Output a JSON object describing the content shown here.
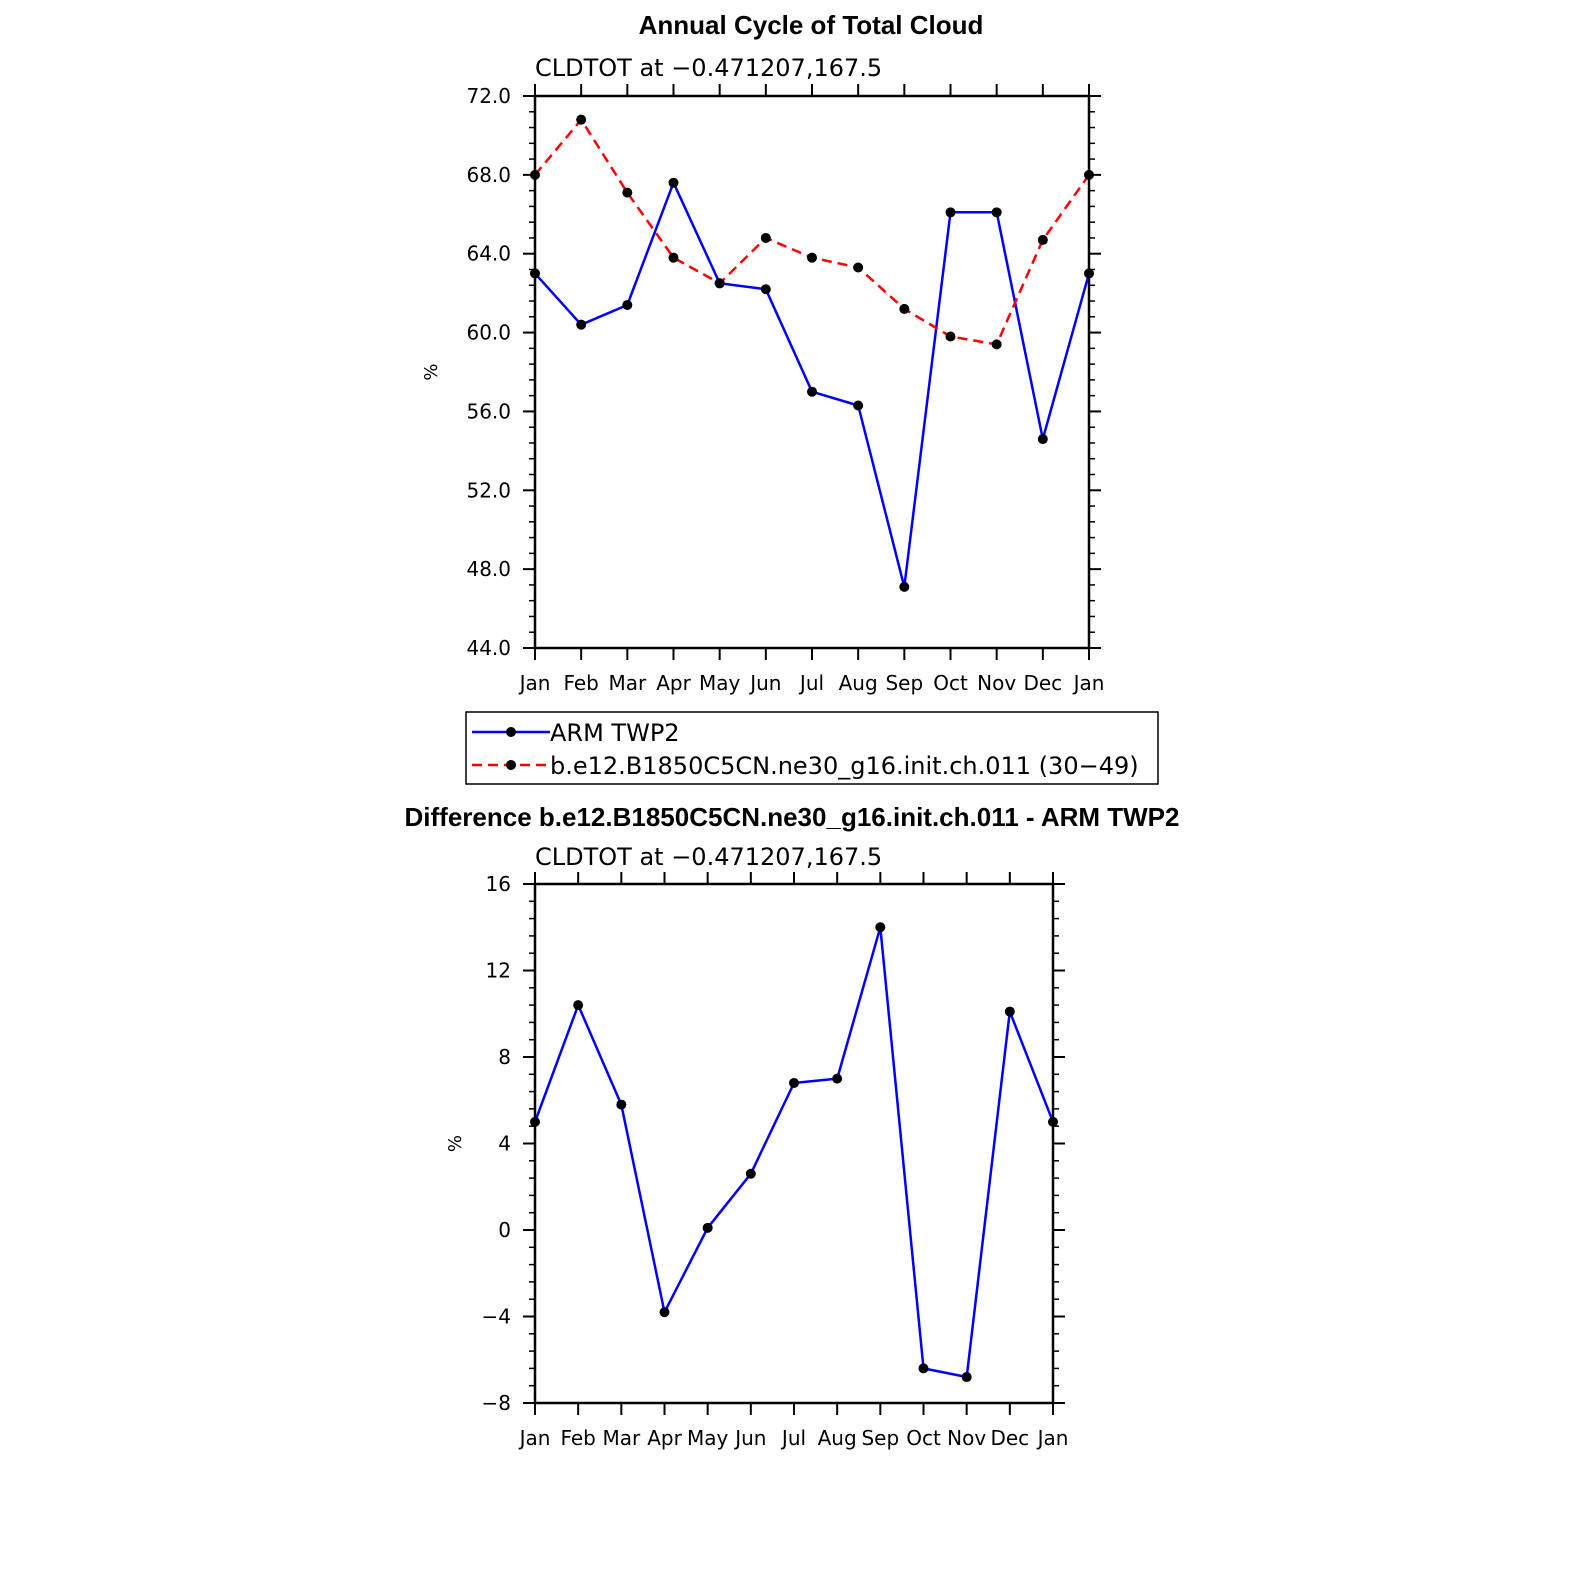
{
  "colors": {
    "obs": "#0000ff",
    "model": "#ff0000",
    "marker": "#000000"
  },
  "chart_data": [
    {
      "type": "line",
      "title": "Annual Cycle of Total Cloud",
      "subtitle": "CLDTOT at −0.471207,167.5",
      "ylabel": "%",
      "ylim": [
        44.0,
        72.0
      ],
      "yticks": [
        "72.0",
        "68.0",
        "64.0",
        "60.0",
        "56.0",
        "52.0",
        "48.0",
        "44.0"
      ],
      "categories": [
        "Jan",
        "Feb",
        "Mar",
        "Apr",
        "May",
        "Jun",
        "Jul",
        "Aug",
        "Sep",
        "Oct",
        "Nov",
        "Dec",
        "Jan"
      ],
      "series": [
        {
          "name": "ARM TWP2",
          "style": "solid",
          "values": [
            63.0,
            60.4,
            61.4,
            67.6,
            62.5,
            62.2,
            57.0,
            56.3,
            47.1,
            66.1,
            66.1,
            54.6,
            63.0
          ]
        },
        {
          "name": "b.e12.B1850C5CN.ne30_g16.init.ch.011 (30−49)",
          "style": "dashed",
          "values": [
            68.0,
            70.8,
            67.1,
            63.8,
            62.5,
            64.8,
            63.8,
            63.3,
            61.2,
            59.8,
            59.4,
            64.7,
            68.0
          ]
        }
      ],
      "legend": "below"
    },
    {
      "type": "line",
      "title": "Difference b.e12.B1850C5CN.ne30_g16.init.ch.011 - ARM TWP2",
      "subtitle": "CLDTOT at −0.471207,167.5",
      "ylabel": "%",
      "ylim": [
        -8,
        16
      ],
      "yticks": [
        "16",
        "12",
        "8",
        "4",
        "0",
        "−4",
        "−8"
      ],
      "categories": [
        "Jan",
        "Feb",
        "Mar",
        "Apr",
        "May",
        "Jun",
        "Jul",
        "Aug",
        "Sep",
        "Oct",
        "Nov",
        "Dec",
        "Jan"
      ],
      "series": [
        {
          "name": "Difference",
          "style": "solid",
          "values": [
            5.0,
            10.4,
            5.8,
            -3.8,
            0.1,
            2.6,
            6.8,
            7.0,
            14.0,
            -6.4,
            -6.8,
            10.1,
            5.0
          ]
        }
      ]
    }
  ]
}
